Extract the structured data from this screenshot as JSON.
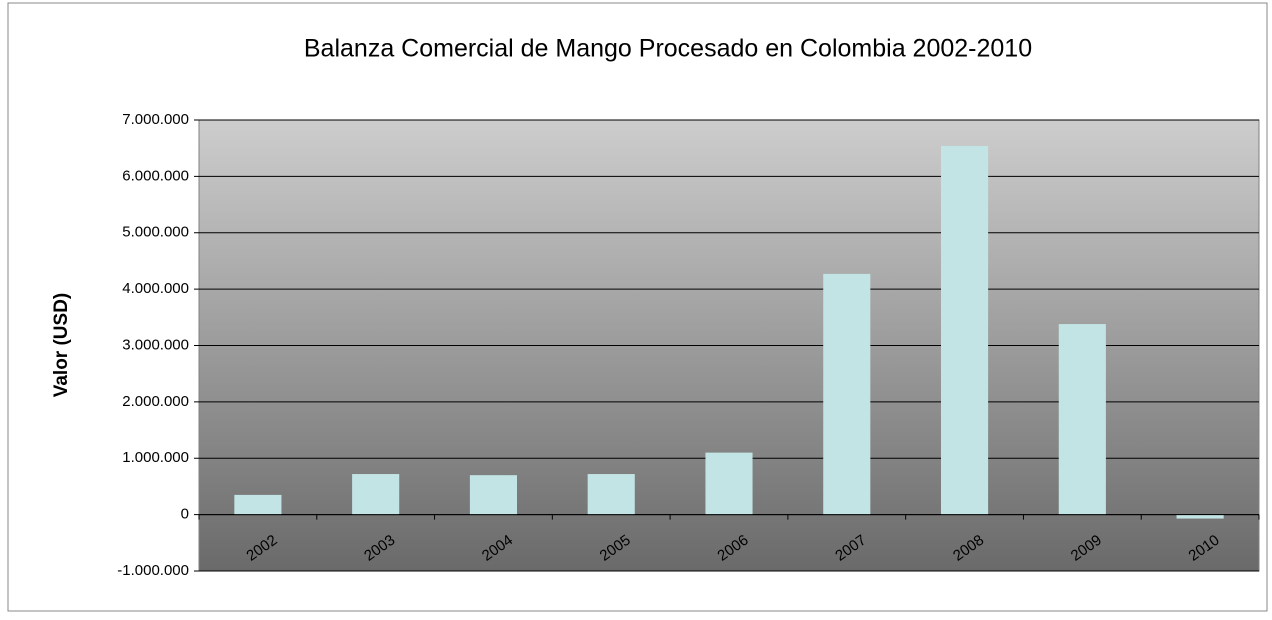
{
  "chart_data": {
    "type": "bar",
    "title": "Balanza Comercial de Mango Procesado en Colombia  2002-2010",
    "y_label": "Valor (USD)",
    "categories": [
      "2002",
      "2003",
      "2004",
      "2005",
      "2006",
      "2007",
      "2008",
      "2009",
      "2010"
    ],
    "values": [
      350000,
      720000,
      700000,
      720000,
      1100000,
      4270000,
      6540000,
      3380000,
      -70000
    ],
    "color": "#c2e4e4",
    "ylim": [
      -1000000,
      7000000
    ],
    "yticks": [
      {
        "value": -1000000,
        "label": "-1.000.000"
      },
      0,
      {
        "value": 1000000,
        "label": "1.000.000"
      },
      {
        "value": 2000000,
        "label": "2.000.000"
      },
      {
        "value": 3000000,
        "label": "3.000.000"
      },
      {
        "value": 4000000,
        "label": "4.000.000"
      },
      {
        "value": 5000000,
        "label": "5.000.000"
      },
      {
        "value": 6000000,
        "label": "6.000.000"
      },
      {
        "value": 7000000,
        "label": "7.000.000"
      }
    ],
    "grid": true
  }
}
